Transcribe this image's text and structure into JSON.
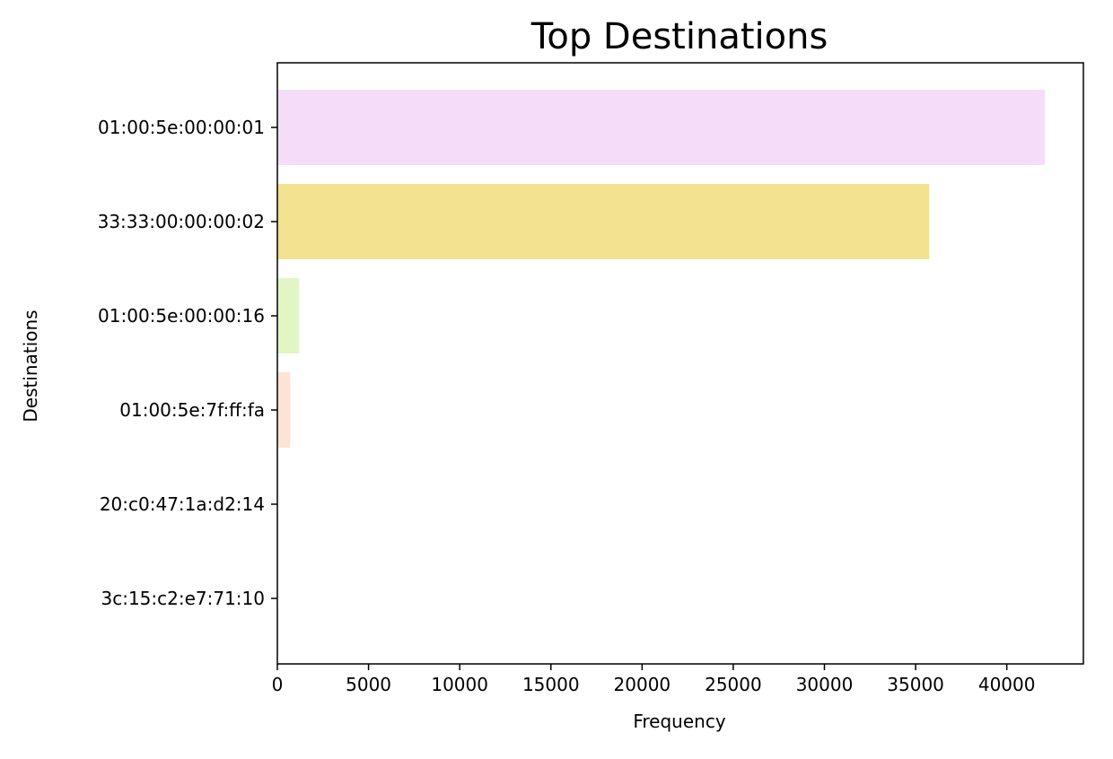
{
  "chart_data": {
    "type": "bar",
    "orientation": "horizontal",
    "title": "Top Destinations",
    "xlabel": "Frequency",
    "ylabel": "Destinations",
    "categories": [
      "01:00:5e:00:00:01",
      "33:33:00:00:00:02",
      "01:00:5e:00:00:16",
      "01:00:5e:7f:ff:fa",
      "20:c0:47:1a:d2:14",
      "3c:15:c2:e7:71:10"
    ],
    "values": [
      42100,
      35750,
      1200,
      700,
      0,
      0
    ],
    "colors": [
      "#f5ddf9",
      "#f3e28f",
      "#e1f6c4",
      "#fde3d3",
      "#ffffff",
      "#ffffff"
    ],
    "xticks": [
      0,
      5000,
      10000,
      15000,
      20000,
      25000,
      30000,
      35000,
      40000
    ],
    "xlim": [
      0,
      44200
    ],
    "grid": false,
    "legend": "none"
  }
}
